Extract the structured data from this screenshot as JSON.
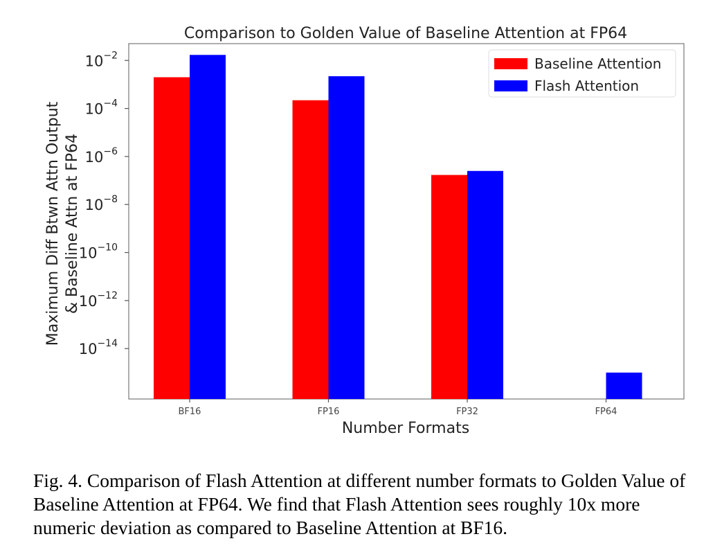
{
  "chart_data": {
    "type": "bar",
    "title": "Comparison to Golden Value of Baseline Attention at FP64",
    "xlabel": "Number Formats",
    "ylabel_line1": "Maximum Diff Btwn Attn Output",
    "ylabel_line2": "& Baseline Attn at FP64",
    "yscale": "log",
    "ylim_exponent": [
      -16.1,
      -1.3
    ],
    "categories": [
      "BF16",
      "FP16",
      "FP32",
      "FP64"
    ],
    "series": [
      {
        "name": "Baseline Attention",
        "color": "#ff0000",
        "values": [
          0.002,
          0.00022,
          1.7e-07,
          null
        ]
      },
      {
        "name": "Flash Attention",
        "color": "#0000ff",
        "values": [
          0.017,
          0.0022,
          2.5e-07,
          1e-15
        ]
      }
    ],
    "yticks": [
      {
        "exp": -2,
        "base": "10",
        "sup": "−2"
      },
      {
        "exp": -4,
        "base": "10",
        "sup": "−4"
      },
      {
        "exp": -6,
        "base": "10",
        "sup": "−6"
      },
      {
        "exp": -8,
        "base": "10",
        "sup": "−8"
      },
      {
        "exp": -10,
        "base": "10",
        "sup": "−10"
      },
      {
        "exp": -12,
        "base": "10",
        "sup": "−12"
      },
      {
        "exp": -14,
        "base": "10",
        "sup": "−14"
      }
    ],
    "legend_position": "top-right"
  },
  "caption": "Fig. 4.  Comparison of Flash Attention at different number formats to Golden Value of Baseline Attention at FP64. We find that Flash Attention sees roughly 10x more numeric deviation as compared to Baseline Attention at BF16."
}
